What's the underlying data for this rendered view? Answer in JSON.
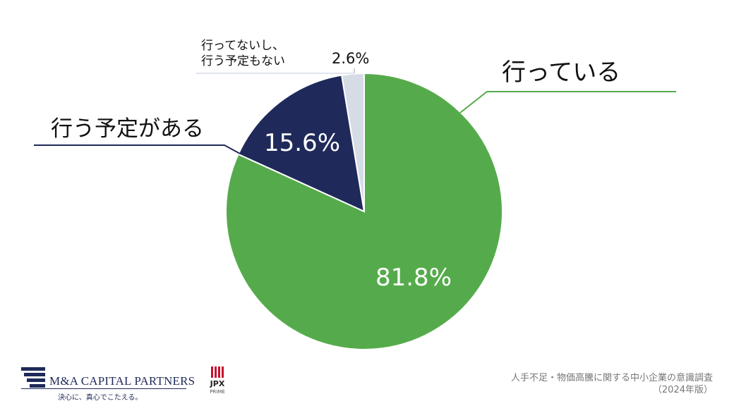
{
  "chart_data": {
    "type": "pie",
    "slices": [
      {
        "label": "行っている",
        "value": 81.8,
        "display": "81.8%",
        "color": "#55ab4b"
      },
      {
        "label": "行う予定がある",
        "value": 15.6,
        "display": "15.6%",
        "color": "#1f2a5a"
      },
      {
        "label_lines": [
          "行ってないし、",
          "行う予定もない"
        ],
        "value": 2.6,
        "display": "2.6%",
        "color": "#d6dce6"
      }
    ]
  },
  "footer": {
    "logo_name": "M&A CAPITAL PARTNERS",
    "logo_tagline": "決心に、真心でこたえる。",
    "jpx_label": "JPX",
    "jpx_sub": "PRIME",
    "source_line1": "人手不足・物価高騰に関する中小企業の意識調査",
    "source_line2": "（2024年版）"
  }
}
